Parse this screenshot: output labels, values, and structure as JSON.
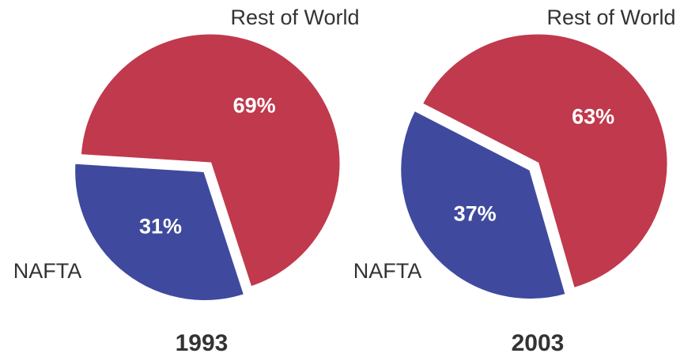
{
  "chart_data": [
    {
      "type": "pie",
      "title": "1993",
      "categories": [
        "NAFTA",
        "Rest of World"
      ],
      "values": [
        31,
        69
      ],
      "value_labels": [
        "31%",
        "69%"
      ],
      "colors": [
        "#3f4a9e",
        "#c0394d"
      ]
    },
    {
      "type": "pie",
      "title": "2003",
      "categories": [
        "NAFTA",
        "Rest of World"
      ],
      "values": [
        37,
        63
      ],
      "value_labels": [
        "37%",
        "63%"
      ],
      "colors": [
        "#3f4a9e",
        "#c0394d"
      ]
    }
  ]
}
